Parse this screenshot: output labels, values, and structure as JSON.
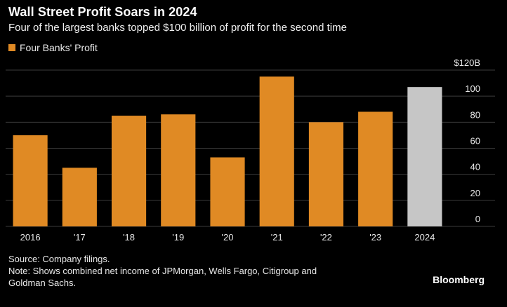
{
  "header": {
    "title": "Wall Street Profit Soars in 2024",
    "subtitle": "Four of the largest banks topped $100 billion of profit for the second time"
  },
  "legend": {
    "label": "Four Banks' Profit",
    "color": "#e08a24"
  },
  "chart_data": {
    "type": "bar",
    "categories": [
      "2016",
      "'17",
      "'18",
      "'19",
      "'20",
      "'21",
      "'22",
      "'23",
      "2024"
    ],
    "series": [
      {
        "name": "Four Banks' Profit",
        "values": [
          70,
          45,
          85,
          86,
          53,
          115,
          80,
          88,
          107
        ]
      }
    ],
    "highlight_index": 8,
    "bar_color": "#e08a24",
    "highlight_color": "#c6c6c6",
    "ylim": [
      0,
      120
    ],
    "yticks": [
      0,
      20,
      40,
      60,
      80,
      100,
      120
    ],
    "ytick_labels": [
      "0",
      "20",
      "40",
      "60",
      "80",
      "100",
      "$120B"
    ],
    "yaxis_side": "right",
    "grid": true,
    "legend_position": "top-left"
  },
  "footer": {
    "source": "Source: Company filings.",
    "note_line1": "Note: Shows combined net income of JPMorgan, Wells Fargo, Citigroup and",
    "note_line2": "Goldman Sachs.",
    "brand": "Bloomberg"
  }
}
